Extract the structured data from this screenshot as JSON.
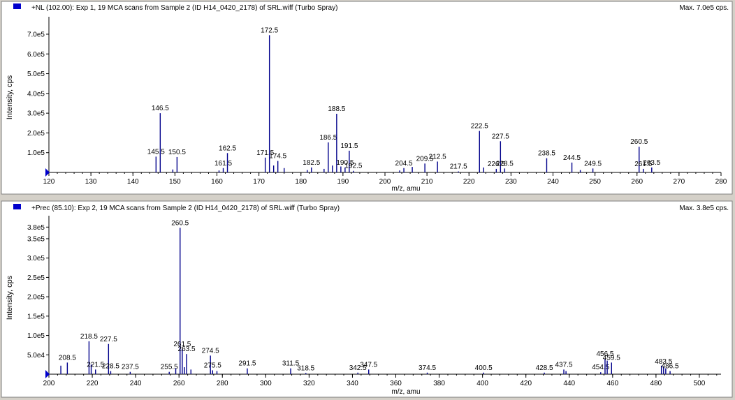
{
  "colors": {
    "peak": "#00008b",
    "axis": "#000000",
    "marker": "#0000cc",
    "panel_bg": "#ffffff",
    "frame": "#d4d0c8"
  },
  "chart_data": [
    {
      "type": "bar",
      "title": "+NL (102.00): Exp 1, 19 MCA scans from Sample 2 (ID H14_0420_2178) of SRL.wiff (Turbo Spray)",
      "max_label": "Max. 7.0e5 cps.",
      "xlabel": "m/z, amu",
      "ylabel": "Intensity, cps",
      "xlim": [
        120,
        280
      ],
      "ylim": [
        0,
        760000
      ],
      "x_ticks": [
        120,
        130,
        140,
        150,
        160,
        170,
        180,
        190,
        200,
        210,
        220,
        230,
        240,
        250,
        260,
        270,
        280
      ],
      "y_ticks": [
        {
          "value": 100000,
          "label": "1.0e5"
        },
        {
          "value": 200000,
          "label": "2.0e5"
        },
        {
          "value": 300000,
          "label": "3.0e5"
        },
        {
          "value": 400000,
          "label": "4.0e5"
        },
        {
          "value": 500000,
          "label": "5.0e5"
        },
        {
          "value": 600000,
          "label": "6.0e5"
        },
        {
          "value": 700000,
          "label": "7.0e5"
        }
      ],
      "peaks": [
        {
          "x": 145.5,
          "y": 80000,
          "label": "145.5"
        },
        {
          "x": 146.5,
          "y": 300000,
          "label": "146.5"
        },
        {
          "x": 149.5,
          "y": 15000
        },
        {
          "x": 150.5,
          "y": 78000,
          "label": "150.5"
        },
        {
          "x": 160.5,
          "y": 10000
        },
        {
          "x": 161.5,
          "y": 22000,
          "label": "161.5"
        },
        {
          "x": 162.5,
          "y": 98000,
          "label": "162.5"
        },
        {
          "x": 171.5,
          "y": 75000,
          "label": "171.5"
        },
        {
          "x": 172.5,
          "y": 695000,
          "label": "172.5"
        },
        {
          "x": 173.5,
          "y": 35000
        },
        {
          "x": 174.5,
          "y": 58000,
          "label": "174.5"
        },
        {
          "x": 176.0,
          "y": 22000
        },
        {
          "x": 181.5,
          "y": 12000
        },
        {
          "x": 182.5,
          "y": 25000,
          "label": "182.5"
        },
        {
          "x": 185.5,
          "y": 18000
        },
        {
          "x": 186.5,
          "y": 152000,
          "label": "186.5"
        },
        {
          "x": 187.5,
          "y": 35000
        },
        {
          "x": 188.5,
          "y": 297000,
          "label": "188.5"
        },
        {
          "x": 189.5,
          "y": 30000
        },
        {
          "x": 190.5,
          "y": 25000,
          "label": "190.5"
        },
        {
          "x": 191.5,
          "y": 110000,
          "label": "191.5"
        },
        {
          "x": 192.5,
          "y": 8000,
          "label": "192.5"
        },
        {
          "x": 203.5,
          "y": 10000
        },
        {
          "x": 204.5,
          "y": 22000,
          "label": "204.5"
        },
        {
          "x": 206.5,
          "y": 28000
        },
        {
          "x": 209.5,
          "y": 45000,
          "label": "209.5"
        },
        {
          "x": 212.5,
          "y": 55000,
          "label": "212.5"
        },
        {
          "x": 217.5,
          "y": 5000,
          "label": "217.5"
        },
        {
          "x": 222.5,
          "y": 210000,
          "label": "222.5"
        },
        {
          "x": 223.5,
          "y": 25000
        },
        {
          "x": 226.5,
          "y": 18000,
          "label": "226.5"
        },
        {
          "x": 227.5,
          "y": 158000,
          "label": "227.5"
        },
        {
          "x": 228.5,
          "y": 20000,
          "label": "228.5"
        },
        {
          "x": 238.5,
          "y": 72000,
          "label": "238.5"
        },
        {
          "x": 244.5,
          "y": 50000,
          "label": "244.5"
        },
        {
          "x": 246.5,
          "y": 12000
        },
        {
          "x": 249.5,
          "y": 20000,
          "label": "249.5"
        },
        {
          "x": 260.5,
          "y": 130000,
          "label": "260.5"
        },
        {
          "x": 261.5,
          "y": 18000,
          "label": "261.5"
        },
        {
          "x": 263.5,
          "y": 25000,
          "label": "263.5"
        }
      ]
    },
    {
      "type": "bar",
      "title": "+Prec (85.10): Exp 2, 19 MCA scans from Sample 2 (ID H14_0420_2178) of SRL.wiff (Turbo Spray)",
      "max_label": "Max. 3.8e5 cps.",
      "xlabel": "m/z, amu",
      "ylabel": "Intensity, cps",
      "xlim": [
        200,
        510
      ],
      "ylim": [
        0,
        395000
      ],
      "x_ticks": [
        200,
        220,
        240,
        260,
        280,
        300,
        320,
        340,
        360,
        380,
        400,
        420,
        440,
        460,
        480,
        500
      ],
      "y_ticks": [
        {
          "value": 50000,
          "label": "5.0e4"
        },
        {
          "value": 100000,
          "label": "1.0e5"
        },
        {
          "value": 150000,
          "label": "1.5e5"
        },
        {
          "value": 200000,
          "label": "2.0e5"
        },
        {
          "value": 250000,
          "label": "2.5e5"
        },
        {
          "value": 300000,
          "label": "3.0e5"
        },
        {
          "value": 350000,
          "label": "3.5e5"
        },
        {
          "value": 380000,
          "label": "3.8e5"
        }
      ],
      "peaks": [
        {
          "x": 205.5,
          "y": 22000
        },
        {
          "x": 208.5,
          "y": 30000,
          "label": "208.5"
        },
        {
          "x": 218.5,
          "y": 85000,
          "label": "218.5"
        },
        {
          "x": 219.5,
          "y": 25000
        },
        {
          "x": 221.5,
          "y": 12000,
          "label": "221.5"
        },
        {
          "x": 227.5,
          "y": 78000,
          "label": "227.5"
        },
        {
          "x": 228.5,
          "y": 8000,
          "label": "228.5"
        },
        {
          "x": 237.5,
          "y": 6000,
          "label": "237.5"
        },
        {
          "x": 255.5,
          "y": 6000,
          "label": "255.5"
        },
        {
          "x": 258.5,
          "y": 15000
        },
        {
          "x": 260.5,
          "y": 378000,
          "label": "260.5"
        },
        {
          "x": 261.5,
          "y": 65000,
          "label": "261.5"
        },
        {
          "x": 262.5,
          "y": 18000
        },
        {
          "x": 263.5,
          "y": 52000,
          "label": "263.5"
        },
        {
          "x": 265.5,
          "y": 12000
        },
        {
          "x": 274.5,
          "y": 48000,
          "label": "274.5"
        },
        {
          "x": 275.5,
          "y": 10000,
          "label": "275.5"
        },
        {
          "x": 277.5,
          "y": 8000
        },
        {
          "x": 291.5,
          "y": 15000,
          "label": "291.5"
        },
        {
          "x": 311.5,
          "y": 15000,
          "label": "311.5"
        },
        {
          "x": 318.5,
          "y": 3000,
          "label": "318.5"
        },
        {
          "x": 342.5,
          "y": 4000,
          "label": "342.5"
        },
        {
          "x": 347.5,
          "y": 12000,
          "label": "347.5"
        },
        {
          "x": 374.5,
          "y": 4000,
          "label": "374.5"
        },
        {
          "x": 400.5,
          "y": 4000,
          "label": "400.5"
        },
        {
          "x": 428.5,
          "y": 4000,
          "label": "428.5"
        },
        {
          "x": 437.5,
          "y": 12000,
          "label": "437.5"
        },
        {
          "x": 438.5,
          "y": 8000
        },
        {
          "x": 454.5,
          "y": 5000,
          "label": "454.5"
        },
        {
          "x": 456.5,
          "y": 40000,
          "label": "456.5"
        },
        {
          "x": 457.5,
          "y": 35000
        },
        {
          "x": 459.5,
          "y": 30000,
          "label": "459.5"
        },
        {
          "x": 482.5,
          "y": 22000
        },
        {
          "x": 483.5,
          "y": 20000,
          "label": "483.5"
        },
        {
          "x": 484.5,
          "y": 15000
        },
        {
          "x": 486.5,
          "y": 8000,
          "label": "486.5"
        }
      ]
    }
  ]
}
